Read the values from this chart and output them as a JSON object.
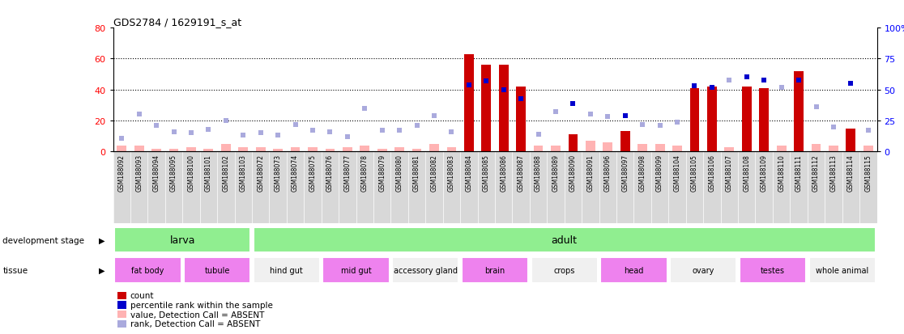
{
  "title": "GDS2784 / 1629191_s_at",
  "samples": [
    "GSM188092",
    "GSM188093",
    "GSM188094",
    "GSM188095",
    "GSM188100",
    "GSM188101",
    "GSM188102",
    "GSM188103",
    "GSM188072",
    "GSM188073",
    "GSM188074",
    "GSM188075",
    "GSM188076",
    "GSM188077",
    "GSM188078",
    "GSM188079",
    "GSM188080",
    "GSM188081",
    "GSM188082",
    "GSM188083",
    "GSM188084",
    "GSM188085",
    "GSM188086",
    "GSM188087",
    "GSM188088",
    "GSM188089",
    "GSM188090",
    "GSM188091",
    "GSM188096",
    "GSM188097",
    "GSM188098",
    "GSM188099",
    "GSM188104",
    "GSM188105",
    "GSM188106",
    "GSM188107",
    "GSM188108",
    "GSM188109",
    "GSM188110",
    "GSM188111",
    "GSM188112",
    "GSM188113",
    "GSM188114",
    "GSM188115"
  ],
  "count_values": [
    0,
    0,
    0,
    0,
    0,
    0,
    0,
    0,
    0,
    0,
    0,
    0,
    0,
    0,
    0,
    0,
    0,
    0,
    0,
    0,
    63,
    56,
    56,
    42,
    0,
    0,
    11,
    0,
    0,
    13,
    0,
    0,
    0,
    41,
    42,
    0,
    42,
    41,
    0,
    52,
    0,
    0,
    15,
    0
  ],
  "rank_values": [
    11,
    30,
    21,
    16,
    15,
    18,
    25,
    13,
    15,
    13,
    22,
    17,
    16,
    12,
    35,
    17,
    17,
    21,
    29,
    16,
    54,
    57,
    50,
    43,
    14,
    32,
    39,
    30,
    28,
    29,
    22,
    21,
    24,
    53,
    52,
    58,
    60,
    58,
    52,
    58,
    36,
    20,
    55,
    17
  ],
  "absent_count_values": [
    4,
    4,
    2,
    2,
    3,
    2,
    5,
    3,
    3,
    2,
    3,
    3,
    2,
    3,
    4,
    2,
    3,
    2,
    5,
    3,
    0,
    0,
    0,
    0,
    4,
    4,
    0,
    7,
    6,
    0,
    5,
    5,
    4,
    0,
    0,
    3,
    0,
    0,
    4,
    0,
    5,
    4,
    0,
    4
  ],
  "is_absent": [
    true,
    true,
    true,
    true,
    true,
    true,
    true,
    true,
    true,
    true,
    true,
    true,
    true,
    true,
    true,
    true,
    true,
    true,
    true,
    true,
    false,
    false,
    false,
    false,
    true,
    true,
    false,
    true,
    true,
    false,
    true,
    true,
    true,
    false,
    false,
    true,
    false,
    false,
    true,
    false,
    true,
    true,
    false,
    true
  ],
  "development_stages": [
    {
      "label": "larva",
      "start": 0,
      "end": 8,
      "color": "#90ee90"
    },
    {
      "label": "adult",
      "start": 8,
      "end": 44,
      "color": "#90ee90"
    }
  ],
  "tissues": [
    {
      "label": "fat body",
      "start": 0,
      "end": 4,
      "color": "#ee82ee"
    },
    {
      "label": "tubule",
      "start": 4,
      "end": 8,
      "color": "#ee82ee"
    },
    {
      "label": "hind gut",
      "start": 8,
      "end": 12,
      "color": "#f0f0f0"
    },
    {
      "label": "mid gut",
      "start": 12,
      "end": 16,
      "color": "#ee82ee"
    },
    {
      "label": "accessory gland",
      "start": 16,
      "end": 20,
      "color": "#f0f0f0"
    },
    {
      "label": "brain",
      "start": 20,
      "end": 24,
      "color": "#ee82ee"
    },
    {
      "label": "crops",
      "start": 24,
      "end": 28,
      "color": "#f0f0f0"
    },
    {
      "label": "head",
      "start": 28,
      "end": 32,
      "color": "#ee82ee"
    },
    {
      "label": "ovary",
      "start": 32,
      "end": 36,
      "color": "#f0f0f0"
    },
    {
      "label": "testes",
      "start": 36,
      "end": 40,
      "color": "#ee82ee"
    },
    {
      "label": "whole animal",
      "start": 40,
      "end": 44,
      "color": "#f0f0f0"
    }
  ],
  "ylim_left": [
    0,
    80
  ],
  "ylim_right": [
    0,
    100
  ],
  "yticks_left": [
    0,
    20,
    40,
    60,
    80
  ],
  "yticks_right": [
    0,
    25,
    50,
    75,
    100
  ],
  "bar_color": "#cc0000",
  "rank_color_present": "#0000cc",
  "absent_bar_color": "#ffb3b3",
  "absent_rank_color": "#aaaadd",
  "legend_items": [
    {
      "label": "count",
      "color": "#cc0000"
    },
    {
      "label": "percentile rank within the sample",
      "color": "#0000cc"
    },
    {
      "label": "value, Detection Call = ABSENT",
      "color": "#ffb3b3"
    },
    {
      "label": "rank, Detection Call = ABSENT",
      "color": "#aaaadd"
    }
  ]
}
